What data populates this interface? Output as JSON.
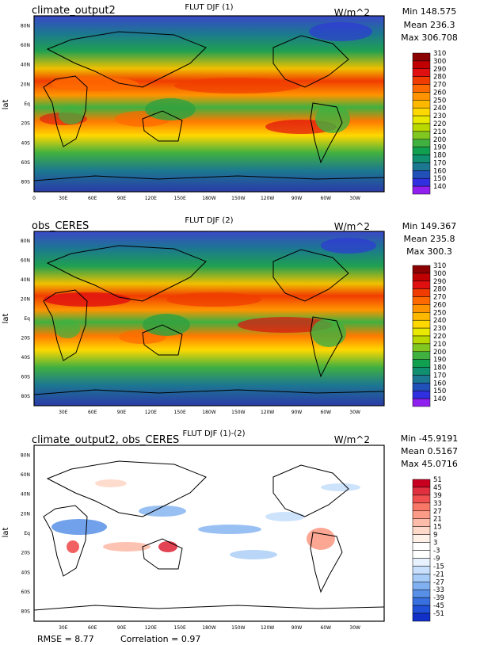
{
  "chart_data": [
    {
      "type": "heatmap",
      "panel_title": "FLUT DJF (1)",
      "case_label": "climate_output2",
      "units": "W/m^2",
      "stats": {
        "min": "Min 148.575",
        "mean": "Mean 236.3",
        "max": "Max 306.708"
      },
      "ylabel": "lat",
      "yticks": [
        "80N",
        "60N",
        "40N",
        "20N",
        "Eq",
        "20S",
        "40S",
        "60S",
        "80S"
      ],
      "xticks": [
        "0",
        "30E",
        "60E",
        "90E",
        "120E",
        "150E",
        "180W",
        "150W",
        "120W",
        "90W",
        "60W",
        "30W"
      ],
      "colorbar": [
        "310",
        "300",
        "290",
        "280",
        "270",
        "260",
        "250",
        "240",
        "230",
        "220",
        "210",
        "200",
        "190",
        "180",
        "170",
        "160",
        "150",
        "140"
      ],
      "colors": [
        "#8b0000",
        "#c00000",
        "#e01010",
        "#f03c00",
        "#ff6a00",
        "#ff9400",
        "#ffb800",
        "#ffd800",
        "#e8e800",
        "#b8d800",
        "#80c820",
        "#40b040",
        "#10a050",
        "#109070",
        "#1c7890",
        "#2050b8",
        "#3030e0",
        "#9020f0"
      ]
    },
    {
      "type": "heatmap",
      "panel_title": "FLUT DJF (2)",
      "case_label": "obs_CERES",
      "units": "W/m^2",
      "stats": {
        "min": "Min 149.367",
        "mean": "Mean 235.8",
        "max": "Max 300.3"
      },
      "ylabel": "lat",
      "yticks": [
        "80N",
        "60N",
        "40N",
        "20N",
        "Eq",
        "20S",
        "40S",
        "60S",
        "80S"
      ],
      "xticks": [
        "30E",
        "60E",
        "90E",
        "120E",
        "150E",
        "180W",
        "150W",
        "120W",
        "90W",
        "60W",
        "30W"
      ],
      "colorbar": [
        "310",
        "300",
        "290",
        "280",
        "270",
        "260",
        "250",
        "240",
        "230",
        "220",
        "210",
        "200",
        "190",
        "180",
        "170",
        "160",
        "150",
        "140"
      ],
      "colors": [
        "#8b0000",
        "#c00000",
        "#e01010",
        "#f03c00",
        "#ff6a00",
        "#ff9400",
        "#ffb800",
        "#ffd800",
        "#e8e800",
        "#b8d800",
        "#80c820",
        "#40b040",
        "#10a050",
        "#109070",
        "#1c7890",
        "#2050b8",
        "#3030e0",
        "#9020f0"
      ]
    },
    {
      "type": "heatmap",
      "panel_title": "FLUT DJF (1)-(2)",
      "case_label": "climate_output2, obs_CERES",
      "units": "W/m^2",
      "stats": {
        "min": "Min -45.9191",
        "mean": "Mean 0.5167",
        "max": "Max 45.0716"
      },
      "ylabel": "lat",
      "yticks": [
        "80N",
        "60N",
        "40N",
        "20N",
        "Eq",
        "20S",
        "40S",
        "60S",
        "80S"
      ],
      "xticks": [
        "30E",
        "60E",
        "90E",
        "120E",
        "150E",
        "180W",
        "150W",
        "120W",
        "90W",
        "60W",
        "30W"
      ],
      "colorbar": [
        "51",
        "45",
        "39",
        "33",
        "27",
        "21",
        "15",
        "9",
        "3",
        "-3",
        "-9",
        "-15",
        "-21",
        "-27",
        "-33",
        "-39",
        "-45",
        "-51"
      ],
      "colors": [
        "#c80020",
        "#e03040",
        "#f05050",
        "#f87868",
        "#fc9c88",
        "#fdbcaa",
        "#fed8c8",
        "#fff0e8",
        "#ffffff",
        "#ffffff",
        "#e8f2ff",
        "#c8e0fc",
        "#a8ccf8",
        "#80b0f0",
        "#5890e8",
        "#3870e0",
        "#2050d8",
        "#1030c8"
      ],
      "footer": {
        "rmse": "RMSE = 8.77",
        "correlation": "Correlation = 0.97"
      }
    }
  ]
}
